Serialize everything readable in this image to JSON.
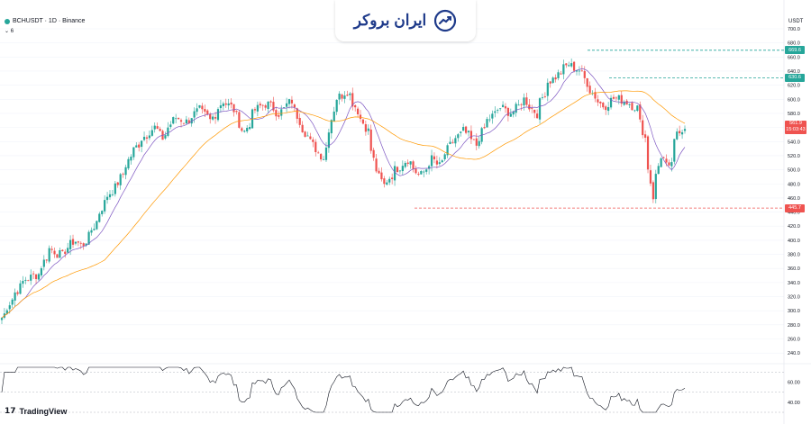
{
  "header": {
    "symbol_line": "BCHUSDT · 1D · Binance",
    "indicator_line": "6",
    "currency": "USDT"
  },
  "brand": {
    "logo_text": "ایران بروکر"
  },
  "footer": {
    "tradingview_label": "TradingView"
  },
  "colors": {
    "up": "#26a69a",
    "down": "#ef5350",
    "ma_fast": "#7e57c2",
    "ma_slow": "#ff9800",
    "brand": "#1e3a8a"
  },
  "chart_data": [
    {
      "type": "candlestick",
      "title": "BCHUSDT 1D",
      "ylim": [
        230,
        700
      ],
      "y_ticks": [
        240,
        260,
        280,
        300,
        320,
        340,
        360,
        380,
        400,
        420,
        440,
        460,
        480,
        500,
        520,
        540,
        560,
        580,
        600,
        620,
        640,
        660,
        680,
        700
      ],
      "y_tick_labels": [
        "240.0",
        "260.0",
        "280.0",
        "300.0",
        "320.0",
        "340.0",
        "360.0",
        "380.0",
        "400.0",
        "420.0",
        "440.0",
        "460.0",
        "480.0",
        "500.0",
        "520.0",
        "540.0",
        "560.0",
        "580.0",
        "600.0",
        "620.0",
        "640.0",
        "660.0",
        "680.0",
        "700.0"
      ],
      "close_path": [
        [
          0,
          290
        ],
        [
          6,
          322
        ],
        [
          12,
          345
        ],
        [
          18,
          352
        ],
        [
          24,
          388
        ],
        [
          30,
          378
        ],
        [
          36,
          402
        ],
        [
          40,
          390
        ],
        [
          46,
          420
        ],
        [
          52,
          460
        ],
        [
          58,
          482
        ],
        [
          64,
          520
        ],
        [
          70,
          545
        ],
        [
          76,
          560
        ],
        [
          80,
          545
        ],
        [
          86,
          575
        ],
        [
          92,
          568
        ],
        [
          98,
          585
        ],
        [
          104,
          570
        ],
        [
          110,
          598
        ],
        [
          116,
          585
        ],
        [
          120,
          548
        ],
        [
          126,
          585
        ],
        [
          132,
          595
        ],
        [
          138,
          580
        ],
        [
          144,
          598
        ],
        [
          148,
          570
        ],
        [
          152,
          548
        ],
        [
          156,
          530
        ],
        [
          160,
          518
        ],
        [
          166,
          600
        ],
        [
          172,
          612
        ],
        [
          176,
          590
        ],
        [
          182,
          555
        ],
        [
          186,
          500
        ],
        [
          190,
          478
        ],
        [
          196,
          500
        ],
        [
          202,
          515
        ],
        [
          208,
          488
        ],
        [
          214,
          515
        ],
        [
          218,
          505
        ],
        [
          224,
          540
        ],
        [
          230,
          555
        ],
        [
          236,
          535
        ],
        [
          242,
          570
        ],
        [
          248,
          588
        ],
        [
          254,
          580
        ],
        [
          260,
          600
        ],
        [
          266,
          580
        ],
        [
          272,
          625
        ],
        [
          276,
          632
        ],
        [
          282,
          650
        ],
        [
          288,
          640
        ],
        [
          292,
          618
        ],
        [
          296,
          600
        ],
        [
          300,
          588
        ],
        [
          304,
          602
        ],
        [
          310,
          598
        ],
        [
          316,
          588
        ],
        [
          320,
          545
        ],
        [
          324,
          462
        ],
        [
          328,
          520
        ],
        [
          332,
          500
        ],
        [
          336,
          550
        ],
        [
          340,
          562
        ]
      ],
      "levels": [
        {
          "value": 669.6,
          "label": "669.6",
          "color": "#26a69a"
        },
        {
          "value": 630.6,
          "label": "630.6",
          "color": "#26a69a"
        },
        {
          "value": 445.7,
          "label": "445.7",
          "color": "#ef5350"
        }
      ],
      "current_price": {
        "value": "561.9",
        "countdown": "15:03:43"
      },
      "series": [
        {
          "kind": "ma_fast"
        },
        {
          "kind": "ma_slow"
        }
      ]
    },
    {
      "type": "line",
      "ylim": [
        30,
        75
      ],
      "y_ticks": [
        40,
        60
      ],
      "y_tick_labels": [
        "40.00",
        "60.00"
      ],
      "guide_levels": [
        70,
        50,
        30
      ]
    }
  ]
}
